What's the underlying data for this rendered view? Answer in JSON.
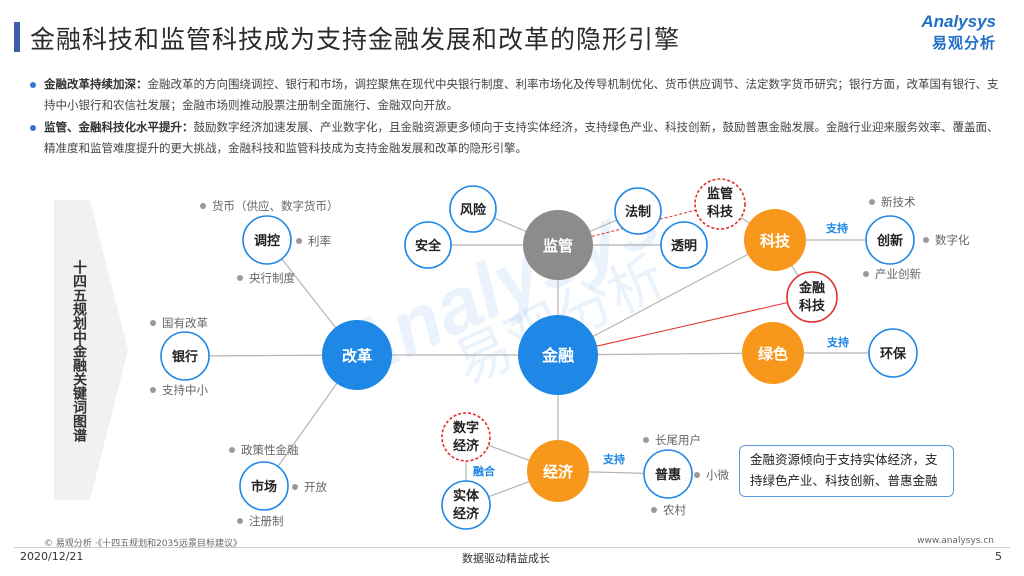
{
  "header": {
    "title": "金融科技和监管科技成为支持金融发展和改革的隐形引擎",
    "logo_en": "Analysys",
    "logo_cn": "易观分析"
  },
  "bullets": [
    {
      "head": "金融改革持续加深：",
      "text": "金融改革的方向围绕调控、银行和市场，调控聚焦在现代中央银行制度、利率市场化及传导机制优化、货币供应调节、法定数字货币研究；银行方面，改革国有银行、支持中小银行和农信社发展；金融市场则推动股票注册制全面施行、金融双向开放。"
    },
    {
      "head": "监管、金融科技化水平提升：",
      "text": "鼓励数字经济加速发展、产业数字化，且金融资源更多倾向于支持实体经济，支持绿色产业、科技创新，鼓励普惠金融发展。金融行业迎来服务效率、覆盖面、精准度和监管难度提升的更大挑战，金融科技和监管科技成为支持金融发展和改革的隐形引擎。"
    }
  ],
  "sidebar": {
    "text": "十四五规划中金融关键词图谱"
  },
  "watermark": {
    "en": "Analysys",
    "cn": "易观分析"
  },
  "nodes": {
    "finance": "金融",
    "reform": "改革",
    "regulation": "监管",
    "tech": "科技",
    "green": "绿色",
    "economy": "经济",
    "risk": "风险",
    "security": "安全",
    "rule_of_law": "法制",
    "transparency": "透明",
    "regtech": "监管科技",
    "fintech": "金融科技",
    "innovation": "创新",
    "env": "环保",
    "regulate": "调控",
    "bank": "银行",
    "market": "市场",
    "digital_econ": "数字经济",
    "real_econ": "实体经济",
    "inclusive": "普惠"
  },
  "tags": {
    "currency": "货币（供应、数字货币）",
    "interest": "利率",
    "central_bank": "央行制度",
    "state_bank_reform": "国有改革",
    "support_small": "支持中小",
    "policy_finance": "政策性金融",
    "opening": "开放",
    "registration": "注册制",
    "new_tech": "新技术",
    "digitalization": "数字化",
    "industry_innovation": "产业创新",
    "long_tail": "长尾用户",
    "small_micro": "小微",
    "rural": "农村"
  },
  "edge_labels": {
    "support1": "支持",
    "support2": "支持",
    "support3": "支持",
    "fusion": "融合"
  },
  "note": "金融资源倾向于支持实体经济，支持绿色产业、科技创新、普惠金融",
  "footer": {
    "source": "© 易观分析 ·《十四五规划和2035远景目标建议》",
    "url": "www.analysys.cn",
    "date": "2020/12/21",
    "slogan": "数据驱动精益成长",
    "page": "5"
  },
  "colors": {
    "blue": "#1f87e5",
    "orange": "#f7981d",
    "gray": "#8c8c8c",
    "accent": "#3b5fa8"
  }
}
